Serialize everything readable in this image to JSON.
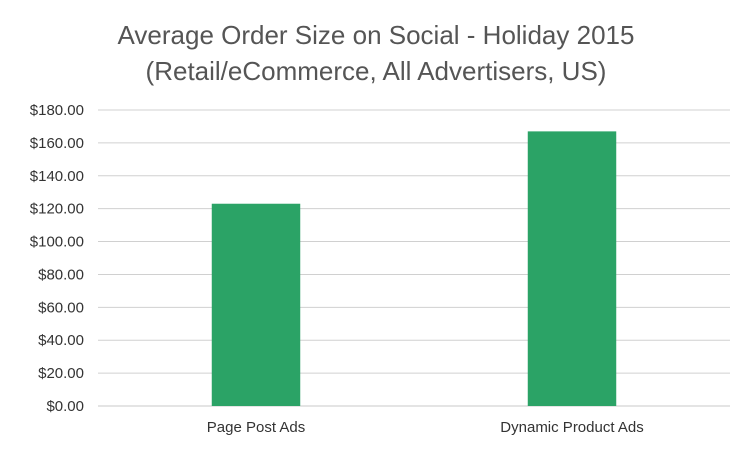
{
  "chart_data": {
    "type": "bar",
    "title": "Average Order Size on Social - Holiday 2015",
    "subtitle": "(Retail/eCommerce, All Advertisers, US)",
    "categories": [
      "Page Post Ads",
      "Dynamic Product Ads"
    ],
    "values": [
      123,
      167
    ],
    "xlabel": "",
    "ylabel": "",
    "ylim": [
      0,
      180
    ],
    "yticks": [
      0,
      20,
      40,
      60,
      80,
      100,
      120,
      140,
      160,
      180
    ],
    "ytick_labels": [
      "$0.00",
      "$20.00",
      "$40.00",
      "$60.00",
      "$80.00",
      "$100.00",
      "$120.00",
      "$140.00",
      "$160.00",
      "$180.00"
    ],
    "grid": true,
    "legend": "none",
    "bar_color": "#2ba366"
  }
}
